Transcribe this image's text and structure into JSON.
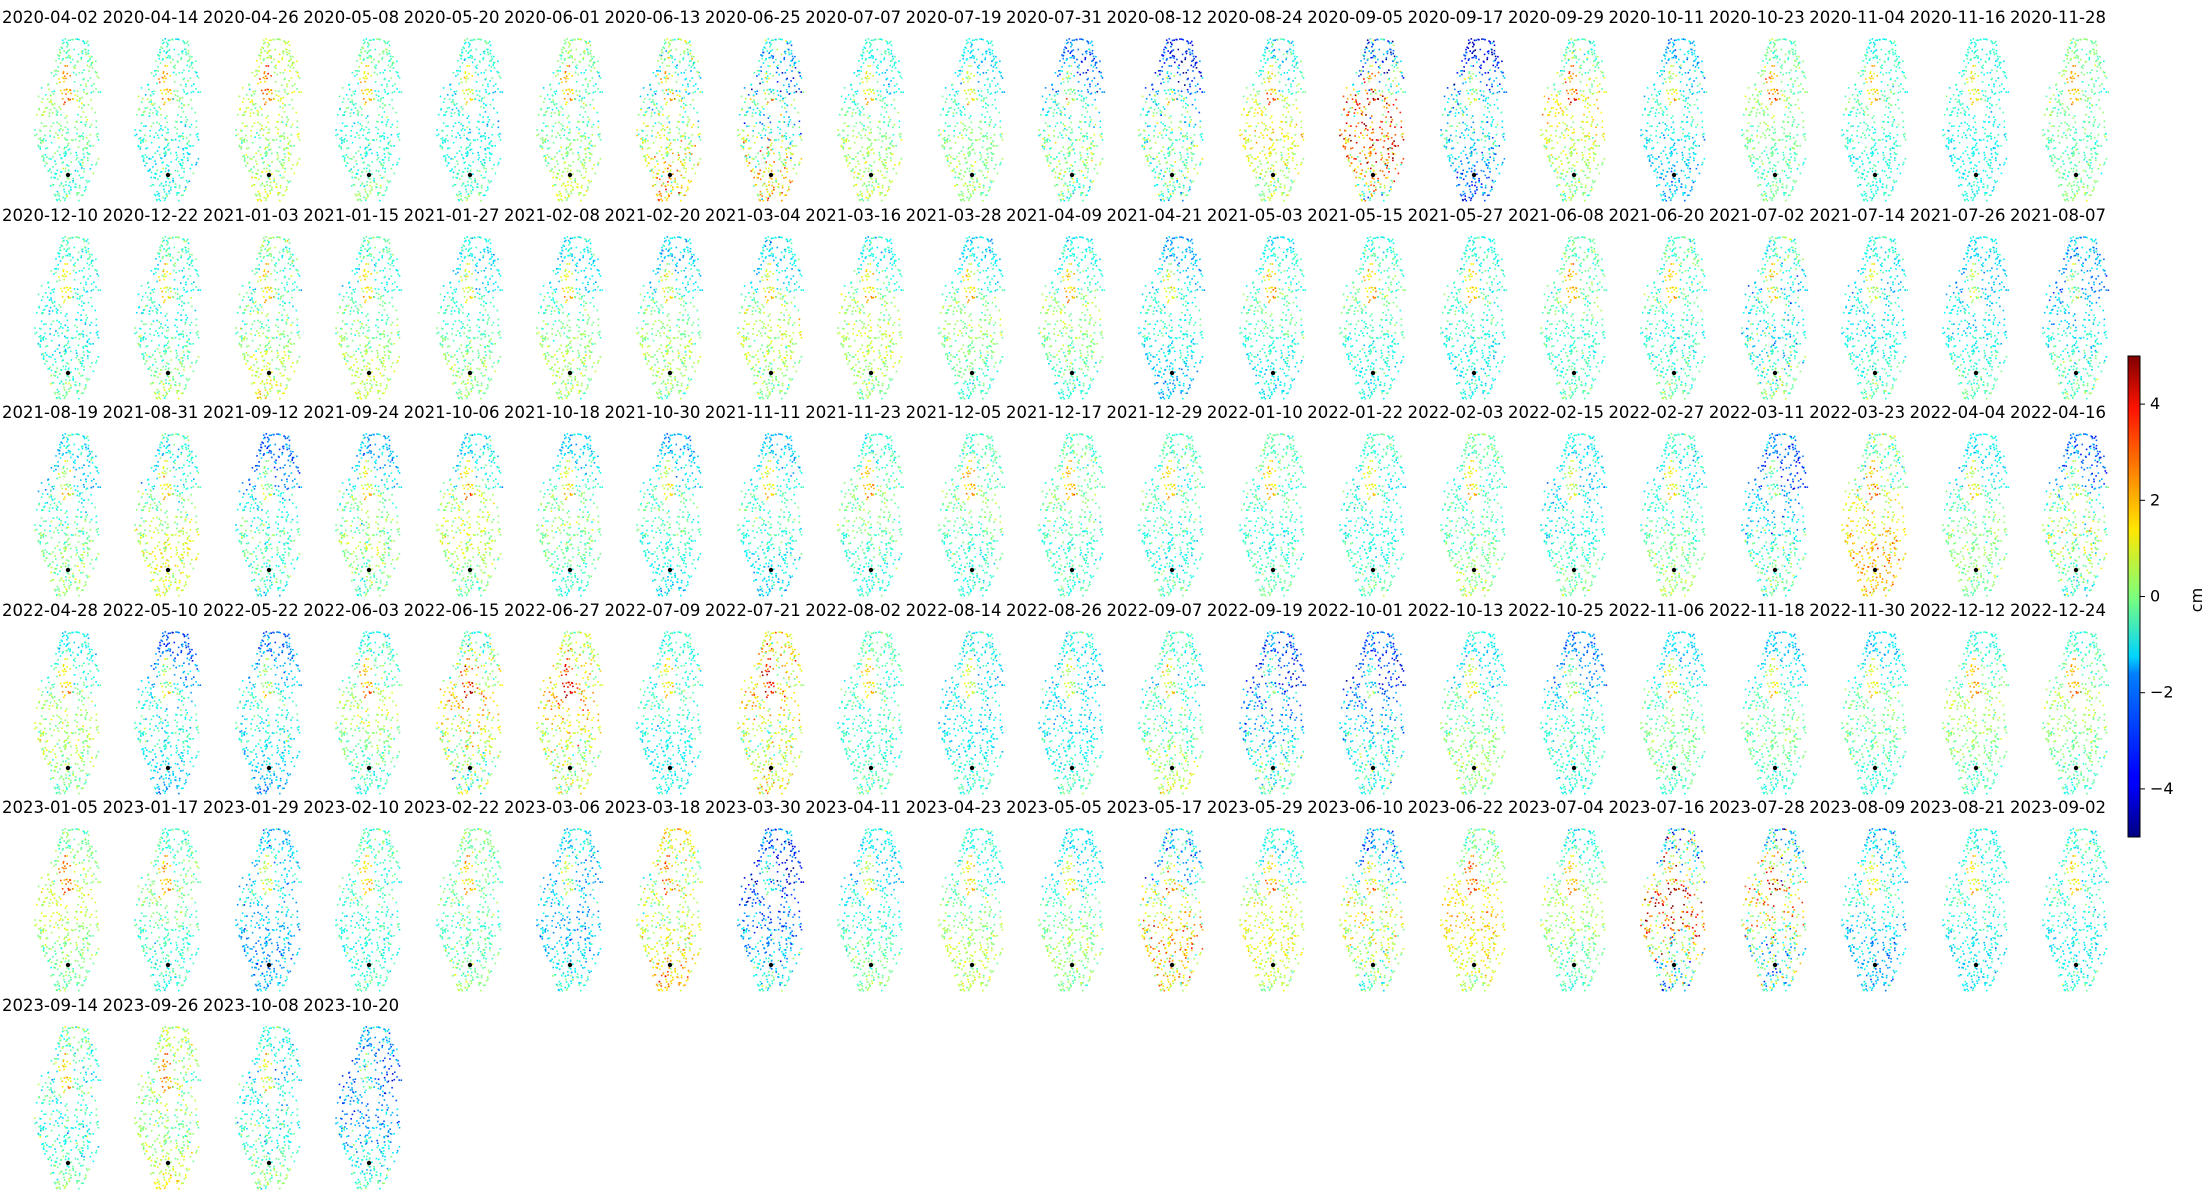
{
  "chart_data": {
    "type": "scatter",
    "subtype": "small-multiple deformation maps (one panel per acquisition date)",
    "title": "",
    "xlabel": "",
    "ylabel": "",
    "colormap": "jet",
    "colorbar": {
      "label": "cm",
      "range": [
        -5,
        5
      ],
      "ticks": [
        4,
        2,
        0,
        -2,
        -4
      ],
      "tick_labels": [
        "4",
        "2",
        "0",
        "−2",
        "−4"
      ]
    },
    "reference_point": "black dot",
    "grid": false,
    "axes_visible": false,
    "panels": [
      {
        "date": "2020-04-02",
        "mean_cm": -0.4,
        "var": 0.9
      },
      {
        "date": "2020-04-14",
        "mean_cm": -0.8,
        "var": 1.0
      },
      {
        "date": "2020-04-26",
        "mean_cm": 0.4,
        "var": 1.0
      },
      {
        "date": "2020-05-08",
        "mean_cm": -0.5,
        "var": 0.9
      },
      {
        "date": "2020-05-20",
        "mean_cm": -0.9,
        "var": 0.9
      },
      {
        "date": "2020-06-01",
        "mean_cm": 0.0,
        "var": 1.0
      },
      {
        "date": "2020-06-13",
        "mean_cm": 0.3,
        "var": 1.8
      },
      {
        "date": "2020-06-25",
        "mean_cm": -0.5,
        "var": 2.2
      },
      {
        "date": "2020-07-07",
        "mean_cm": -0.3,
        "var": 0.9
      },
      {
        "date": "2020-07-19",
        "mean_cm": -0.6,
        "var": 0.9
      },
      {
        "date": "2020-07-31",
        "mean_cm": -1.2,
        "var": 1.3
      },
      {
        "date": "2020-08-12",
        "mean_cm": -1.8,
        "var": 1.8
      },
      {
        "date": "2020-08-24",
        "mean_cm": 0.0,
        "var": 1.2
      },
      {
        "date": "2020-09-05",
        "mean_cm": 0.3,
        "var": 3.0
      },
      {
        "date": "2020-09-17",
        "mean_cm": -2.5,
        "var": 1.5
      },
      {
        "date": "2020-09-29",
        "mean_cm": 0.2,
        "var": 1.2
      },
      {
        "date": "2020-10-11",
        "mean_cm": -1.6,
        "var": 1.0
      },
      {
        "date": "2020-10-23",
        "mean_cm": -0.2,
        "var": 0.8
      },
      {
        "date": "2020-11-04",
        "mean_cm": -0.8,
        "var": 0.8
      },
      {
        "date": "2020-11-16",
        "mean_cm": -1.0,
        "var": 0.7
      },
      {
        "date": "2020-11-28",
        "mean_cm": -0.2,
        "var": 0.8
      },
      {
        "date": "2020-12-10",
        "mean_cm": -0.8,
        "var": 0.9
      },
      {
        "date": "2020-12-22",
        "mean_cm": -0.5,
        "var": 1.0
      },
      {
        "date": "2021-01-03",
        "mean_cm": 0.0,
        "var": 1.1
      },
      {
        "date": "2021-01-15",
        "mean_cm": -0.2,
        "var": 0.9
      },
      {
        "date": "2021-01-27",
        "mean_cm": -0.6,
        "var": 0.9
      },
      {
        "date": "2021-02-08",
        "mean_cm": -0.5,
        "var": 0.9
      },
      {
        "date": "2021-02-20",
        "mean_cm": -0.6,
        "var": 1.0
      },
      {
        "date": "2021-03-04",
        "mean_cm": -0.4,
        "var": 1.0
      },
      {
        "date": "2021-03-16",
        "mean_cm": -0.3,
        "var": 0.9
      },
      {
        "date": "2021-03-28",
        "mean_cm": -0.7,
        "var": 0.9
      },
      {
        "date": "2021-04-09",
        "mean_cm": -0.6,
        "var": 0.9
      },
      {
        "date": "2021-04-21",
        "mean_cm": -1.6,
        "var": 1.0
      },
      {
        "date": "2021-05-03",
        "mean_cm": -1.0,
        "var": 0.9
      },
      {
        "date": "2021-05-15",
        "mean_cm": -0.8,
        "var": 0.9
      },
      {
        "date": "2021-05-27",
        "mean_cm": -1.0,
        "var": 0.9
      },
      {
        "date": "2021-06-08",
        "mean_cm": -0.5,
        "var": 0.9
      },
      {
        "date": "2021-06-20",
        "mean_cm": -0.6,
        "var": 1.0
      },
      {
        "date": "2021-07-02",
        "mean_cm": -0.8,
        "var": 1.6
      },
      {
        "date": "2021-07-14",
        "mean_cm": -1.0,
        "var": 0.9
      },
      {
        "date": "2021-07-26",
        "mean_cm": -1.2,
        "var": 0.9
      },
      {
        "date": "2021-08-07",
        "mean_cm": -1.4,
        "var": 1.1
      },
      {
        "date": "2021-08-19",
        "mean_cm": -0.7,
        "var": 1.0
      },
      {
        "date": "2021-08-31",
        "mean_cm": -0.1,
        "var": 1.1
      },
      {
        "date": "2021-09-12",
        "mean_cm": -1.5,
        "var": 1.1
      },
      {
        "date": "2021-09-24",
        "mean_cm": -0.8,
        "var": 1.1
      },
      {
        "date": "2021-10-06",
        "mean_cm": -0.3,
        "var": 1.1
      },
      {
        "date": "2021-10-18",
        "mean_cm": -0.8,
        "var": 0.9
      },
      {
        "date": "2021-10-30",
        "mean_cm": -1.3,
        "var": 0.9
      },
      {
        "date": "2021-11-11",
        "mean_cm": -1.3,
        "var": 0.9
      },
      {
        "date": "2021-11-23",
        "mean_cm": -0.6,
        "var": 0.9
      },
      {
        "date": "2021-12-05",
        "mean_cm": -0.6,
        "var": 0.9
      },
      {
        "date": "2021-12-17",
        "mean_cm": -0.5,
        "var": 0.9
      },
      {
        "date": "2021-12-29",
        "mean_cm": -0.7,
        "var": 0.9
      },
      {
        "date": "2022-01-10",
        "mean_cm": -0.6,
        "var": 0.8
      },
      {
        "date": "2022-01-22",
        "mean_cm": -0.8,
        "var": 0.8
      },
      {
        "date": "2022-02-03",
        "mean_cm": -0.3,
        "var": 0.9
      },
      {
        "date": "2022-02-15",
        "mean_cm": -1.0,
        "var": 0.9
      },
      {
        "date": "2022-02-27",
        "mean_cm": -0.5,
        "var": 0.9
      },
      {
        "date": "2022-03-11",
        "mean_cm": -1.6,
        "var": 1.3
      },
      {
        "date": "2022-03-23",
        "mean_cm": 0.8,
        "var": 1.3
      },
      {
        "date": "2022-04-04",
        "mean_cm": -0.6,
        "var": 0.8
      },
      {
        "date": "2022-04-16",
        "mean_cm": -1.2,
        "var": 1.6
      },
      {
        "date": "2022-04-28",
        "mean_cm": -0.4,
        "var": 0.9
      },
      {
        "date": "2022-05-10",
        "mean_cm": -1.8,
        "var": 1.1
      },
      {
        "date": "2022-05-22",
        "mean_cm": -1.8,
        "var": 1.1
      },
      {
        "date": "2022-06-03",
        "mean_cm": -0.4,
        "var": 1.0
      },
      {
        "date": "2022-06-15",
        "mean_cm": 0.2,
        "var": 1.7
      },
      {
        "date": "2022-06-27",
        "mean_cm": 0.8,
        "var": 1.4
      },
      {
        "date": "2022-07-09",
        "mean_cm": -1.0,
        "var": 0.8
      },
      {
        "date": "2022-07-21",
        "mean_cm": 1.0,
        "var": 1.6
      },
      {
        "date": "2022-08-02",
        "mean_cm": -0.6,
        "var": 0.8
      },
      {
        "date": "2022-08-14",
        "mean_cm": -1.2,
        "var": 0.9
      },
      {
        "date": "2022-08-26",
        "mean_cm": -1.2,
        "var": 0.9
      },
      {
        "date": "2022-09-07",
        "mean_cm": -0.4,
        "var": 1.1
      },
      {
        "date": "2022-09-19",
        "mean_cm": -2.0,
        "var": 1.5
      },
      {
        "date": "2022-10-01",
        "mean_cm": -2.0,
        "var": 1.3
      },
      {
        "date": "2022-10-13",
        "mean_cm": -0.6,
        "var": 0.9
      },
      {
        "date": "2022-10-25",
        "mean_cm": -1.5,
        "var": 0.9
      },
      {
        "date": "2022-11-06",
        "mean_cm": -0.8,
        "var": 0.8
      },
      {
        "date": "2022-11-18",
        "mean_cm": -0.9,
        "var": 0.8
      },
      {
        "date": "2022-11-30",
        "mean_cm": -0.9,
        "var": 0.8
      },
      {
        "date": "2022-12-12",
        "mean_cm": -0.4,
        "var": 0.8
      },
      {
        "date": "2022-12-24",
        "mean_cm": -0.3,
        "var": 0.8
      },
      {
        "date": "2023-01-05",
        "mean_cm": 0.1,
        "var": 0.8
      },
      {
        "date": "2023-01-17",
        "mean_cm": -0.6,
        "var": 0.9
      },
      {
        "date": "2023-01-29",
        "mean_cm": -1.8,
        "var": 1.1
      },
      {
        "date": "2023-02-10",
        "mean_cm": -0.7,
        "var": 0.9
      },
      {
        "date": "2023-02-22",
        "mean_cm": -0.3,
        "var": 0.9
      },
      {
        "date": "2023-03-06",
        "mean_cm": -1.6,
        "var": 1.1
      },
      {
        "date": "2023-03-18",
        "mean_cm": 0.9,
        "var": 1.4
      },
      {
        "date": "2023-03-30",
        "mean_cm": -2.4,
        "var": 1.6
      },
      {
        "date": "2023-04-11",
        "mean_cm": -0.9,
        "var": 0.9
      },
      {
        "date": "2023-04-23",
        "mean_cm": -0.2,
        "var": 0.9
      },
      {
        "date": "2023-05-05",
        "mean_cm": -0.6,
        "var": 0.9
      },
      {
        "date": "2023-05-17",
        "mean_cm": 0.0,
        "var": 1.9
      },
      {
        "date": "2023-05-29",
        "mean_cm": 0.0,
        "var": 1.0
      },
      {
        "date": "2023-06-10",
        "mean_cm": -0.6,
        "var": 1.5
      },
      {
        "date": "2023-06-22",
        "mean_cm": 0.6,
        "var": 1.0
      },
      {
        "date": "2023-07-04",
        "mean_cm": -0.4,
        "var": 0.9
      },
      {
        "date": "2023-07-16",
        "mean_cm": 0.0,
        "var": 3.3
      },
      {
        "date": "2023-07-28",
        "mean_cm": -0.5,
        "var": 2.7
      },
      {
        "date": "2023-08-09",
        "mean_cm": -1.6,
        "var": 1.2
      },
      {
        "date": "2023-08-21",
        "mean_cm": -1.1,
        "var": 0.9
      },
      {
        "date": "2023-09-02",
        "mean_cm": -1.0,
        "var": 1.0
      },
      {
        "date": "2023-09-14",
        "mean_cm": -0.6,
        "var": 1.2
      },
      {
        "date": "2023-09-26",
        "mean_cm": 0.3,
        "var": 1.1
      },
      {
        "date": "2023-10-08",
        "mean_cm": -0.8,
        "var": 1.1
      },
      {
        "date": "2023-10-20",
        "mean_cm": -2.0,
        "var": 1.3
      }
    ]
  }
}
